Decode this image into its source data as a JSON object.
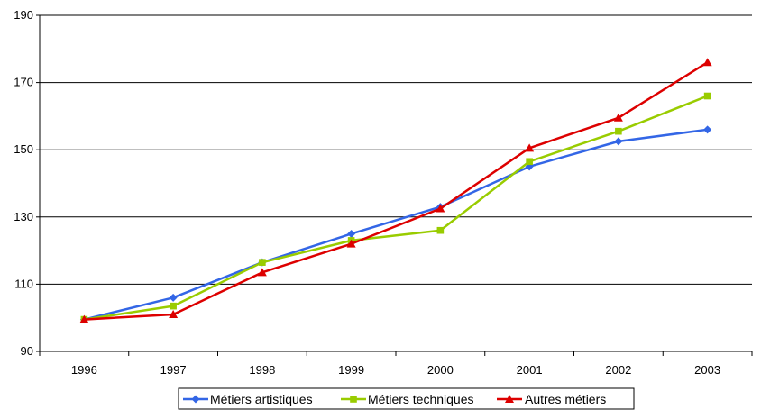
{
  "chart_data": {
    "type": "line",
    "title": "",
    "xlabel": "",
    "ylabel": "",
    "categories": [
      "1996",
      "1997",
      "1998",
      "1999",
      "2000",
      "2001",
      "2002",
      "2003"
    ],
    "ylim": [
      90,
      190
    ],
    "yticks": [
      90,
      110,
      130,
      150,
      170,
      190
    ],
    "grid": true,
    "legend_position": "bottom",
    "series": [
      {
        "name": "Métiers artistiques",
        "color": "#3366e6",
        "marker": "diamond",
        "values": [
          99.5,
          106,
          116.5,
          125,
          133,
          145,
          152.5,
          156
        ]
      },
      {
        "name": "Métiers techniques",
        "color": "#99cc00",
        "marker": "square",
        "values": [
          99.5,
          103.5,
          116.5,
          123,
          126,
          146.5,
          155.5,
          166
        ]
      },
      {
        "name": "Autres métiers",
        "color": "#dd0000",
        "marker": "triangle",
        "values": [
          99.5,
          101,
          113.5,
          122,
          132.5,
          150.5,
          159.5,
          176
        ]
      }
    ]
  }
}
